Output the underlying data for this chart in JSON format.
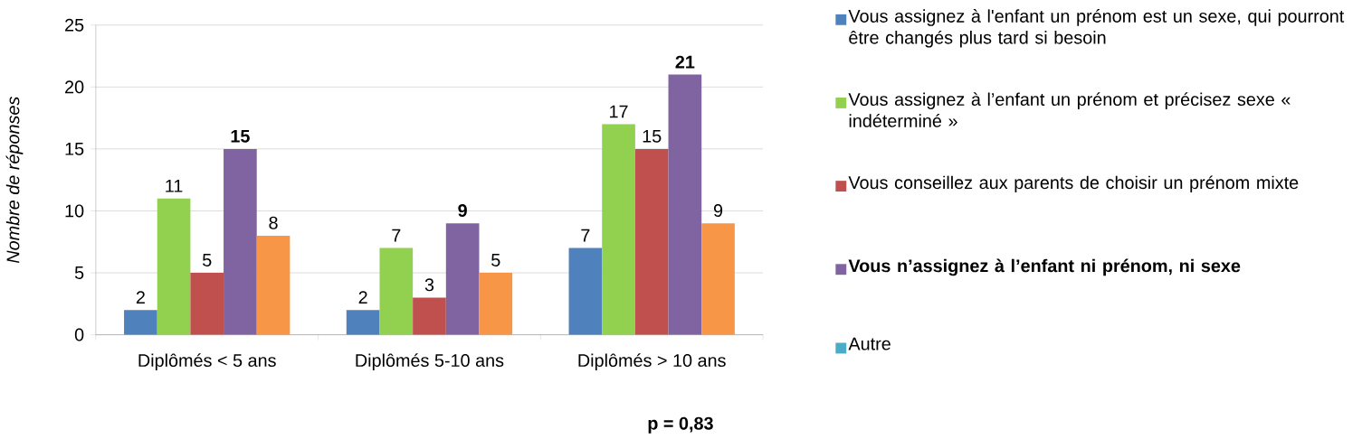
{
  "chart_data": {
    "type": "bar",
    "ylabel": "Nombre de réponses",
    "categories": [
      "Diplômés < 5 ans",
      "Diplômés 5-10 ans",
      "Diplômés > 10 ans"
    ],
    "series": [
      {
        "name": "Vous assignez à l'enfant un prénom est un sexe, qui pourront être changés plus tard si besoin",
        "color": "#4f81bd",
        "values": [
          2,
          2,
          7
        ]
      },
      {
        "name": "Vous assignez à l’enfant un prénom et précisez sexe « indéterminé »",
        "color": "#92d050",
        "values": [
          11,
          7,
          17
        ]
      },
      {
        "name": "Vous conseillez aux parents de choisir un prénom mixte",
        "color": "#c0504d",
        "values": [
          5,
          3,
          15
        ]
      },
      {
        "name": "**Vous n’assignez à l’enfant ni prénom, ni sexe**",
        "color": "#8064a2",
        "values": [
          15,
          9,
          21
        ],
        "value_labels": [
          "**15**",
          "**9**",
          "**21**"
        ]
      },
      {
        "color": "#f79646",
        "values": [
          8,
          5,
          9
        ]
      },
      {
        "name": "Autre",
        "color": "#4bacc6",
        "values": [
          null,
          null,
          null
        ]
      }
    ],
    "ylim": [
      0,
      25
    ],
    "yticks": [
      0,
      5,
      10,
      15,
      20,
      25
    ],
    "grid": "y",
    "legend": "right",
    "data_labels": true,
    "annotations": [
      "p = 0,83"
    ]
  }
}
